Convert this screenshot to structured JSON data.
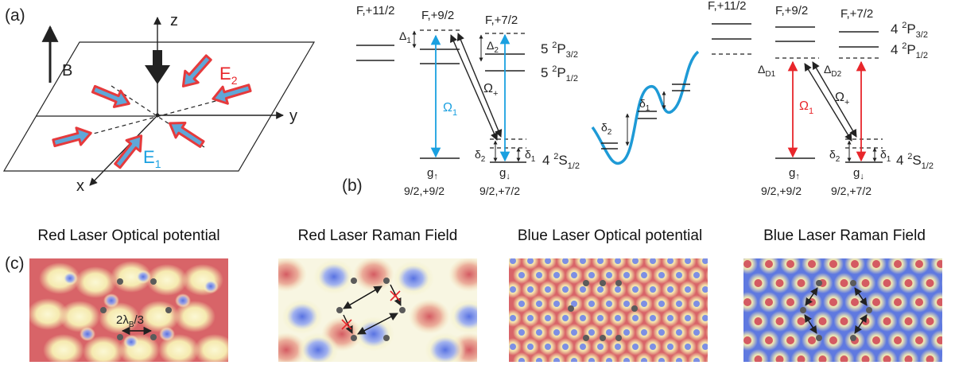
{
  "panels": {
    "a": {
      "letter": "(a)",
      "axes": {
        "x": "x",
        "y": "y",
        "z": "z"
      },
      "field": "B",
      "beams": {
        "e1": "E",
        "e1_sub": "1",
        "e2": "E",
        "e2_sub": "2"
      }
    },
    "b": {
      "letter": "(b)",
      "left": {
        "levels_top": [
          "F,+11/2",
          "F,+9/2",
          "F,+7/2"
        ],
        "p32": {
          "n": "5 ",
          "sup": "2",
          "term": "P",
          "sub": "3/2"
        },
        "p12": {
          "n": "5 ",
          "sup": "2",
          "term": "P",
          "sub": "1/2"
        },
        "s12": {
          "n": "4 ",
          "sup": "2",
          "term": "S",
          "sub": "1/2"
        },
        "delta1": "Δ",
        "delta1_sub": "1",
        "delta2": "Δ",
        "delta2_sub": "2",
        "omega_plus": "Ω",
        "omega_plus_sub": "+",
        "omega1": "Ω",
        "omega1_sub": "1",
        "g_up": "g",
        "g_up_arrow": "↑",
        "g_down": "g",
        "g_down_arrow": "↓",
        "g_up_state": "9/2,+9/2",
        "g_down_state": "9/2,+7/2",
        "d1": "δ",
        "d1_sub": "1",
        "d2": "δ",
        "d2_sub": "2"
      },
      "middle": {
        "d1": "δ",
        "d1_sub": "1",
        "d2": "δ",
        "d2_sub": "2"
      },
      "right": {
        "levels_top": [
          "F,+11/2",
          "F,+9/2",
          "F,+7/2"
        ],
        "p32": {
          "n": "4 ",
          "sup": "2",
          "term": "P",
          "sub": "3/2"
        },
        "p12": {
          "n": "4 ",
          "sup": "2",
          "term": "P",
          "sub": "1/2"
        },
        "s12": {
          "n": "4 ",
          "sup": "2",
          "term": "S",
          "sub": "1/2"
        },
        "dD1": "Δ",
        "dD1_sub": "D1",
        "dD2": "Δ",
        "dD2_sub": "D2",
        "omega_plus": "Ω",
        "omega_plus_sub": "+",
        "omega1": "Ω",
        "omega1_sub": "1",
        "g_up": "g",
        "g_up_arrow": "↑",
        "g_down": "g",
        "g_down_arrow": "↓",
        "g_up_state": "9/2,+9/2",
        "g_down_state": "9/2,+7/2",
        "d1": "δ",
        "d1_sub": "1",
        "d2": "δ",
        "d2_sub": "2"
      }
    },
    "c": {
      "letter": "(c)",
      "titles": [
        "Red Laser Optical potential",
        "Red Laser Raman Field",
        "Blue Laser Optical potential",
        "Blue Laser Raman Field"
      ],
      "spacing_label": {
        "pre": "2",
        "sym": "λ",
        "sub": "B",
        "post": "/3"
      }
    }
  },
  "colors": {
    "blue_beam": "#1aa0e0",
    "red_beam": "#e8262b",
    "arrow_face": "#5fa7d8",
    "arrow_edge": "#e63a3c",
    "lattice_curve": "#1e9ad6",
    "map_red": "#d86468",
    "map_blue": "#5f79e0",
    "map_yellow": "#f6f2b0",
    "dot": "#5b5b5b"
  }
}
